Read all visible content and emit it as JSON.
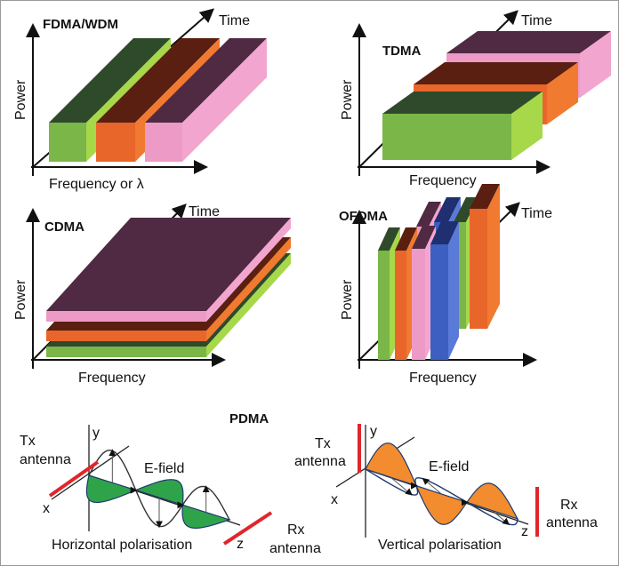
{
  "panels": {
    "fdma": {
      "title": "FDMA/WDM",
      "y_label": "Power",
      "x_label": "Frequency or λ",
      "time_label": "Time"
    },
    "tdma": {
      "title": "TDMA",
      "y_label": "Power",
      "x_label": "Frequency",
      "time_label": "Time"
    },
    "cdma": {
      "title": "CDMA",
      "y_label": "Power",
      "x_label": "Frequency",
      "time_label": "Time"
    },
    "ofdma": {
      "title": "OFDMA",
      "y_label": "Power",
      "x_label": "Frequency",
      "time_label": "Time"
    },
    "pdma": {
      "title": "PDMA",
      "left": {
        "tx": [
          "Tx",
          "antenna"
        ],
        "rx": [
          "Rx",
          "antenna"
        ],
        "field": "E-field",
        "caption": "Horizontal polarisation",
        "x": "x",
        "y": "y",
        "z": "z"
      },
      "right": {
        "tx": [
          "Tx",
          "antenna"
        ],
        "rx": [
          "Rx",
          "antenna"
        ],
        "field": "E-field",
        "caption": "Vertical polarisation",
        "x": "x",
        "y": "y",
        "z": "z"
      }
    }
  },
  "colors": {
    "green": [
      "#7ab648",
      "#2f4a2a",
      "#a6d84a"
    ],
    "orange": [
      "#e8662a",
      "#5a1f10",
      "#f07a30"
    ],
    "pink": [
      "#ee9ac6",
      "#4f2a42",
      "#f2a6cf"
    ],
    "blue": [
      "#3d5fc2",
      "#1f2f70",
      "#5a7ad8"
    ],
    "antenna": "#e0262b",
    "wave_green": "#2fa34a",
    "wave_orange": "#f28c2e"
  }
}
